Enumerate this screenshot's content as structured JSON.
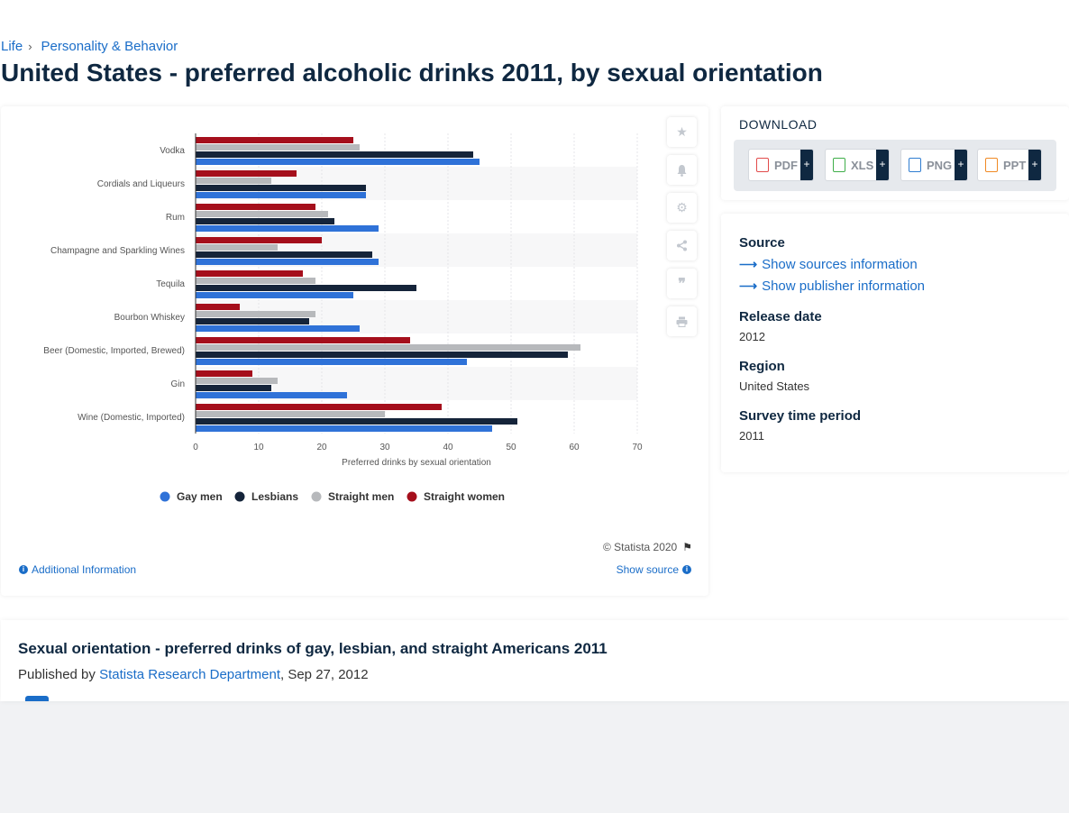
{
  "breadcrumb": {
    "items": [
      "Life",
      "Personality & Behavior"
    ],
    "separator": "›"
  },
  "page_title": "United States - preferred alcoholic drinks 2011, by sexual orientation",
  "toolbar": {
    "icons": [
      "star-icon",
      "bell-icon",
      "gear-icon",
      "share-icon",
      "quote-icon",
      "print-icon"
    ]
  },
  "chart_footer": {
    "copyright": "© Statista 2020",
    "additional_info": "Additional Information",
    "show_source": "Show source"
  },
  "download": {
    "title": "DOWNLOAD",
    "buttons": [
      {
        "label": "PDF",
        "color": "#e24b4b"
      },
      {
        "label": "XLS",
        "color": "#3fae49"
      },
      {
        "label": "PNG",
        "color": "#2f7dd1"
      },
      {
        "label": "PPT",
        "color": "#f08a24"
      }
    ],
    "plus": "+"
  },
  "meta": {
    "source_label": "Source",
    "show_sources": "Show sources information",
    "show_publisher": "Show publisher information",
    "release_label": "Release date",
    "release_value": "2012",
    "region_label": "Region",
    "region_value": "United States",
    "survey_label": "Survey time period",
    "survey_value": "2011"
  },
  "description": {
    "title": "Sexual orientation - preferred drinks of gay, lesbian, and straight Americans 2011",
    "published_prefix": "Published by",
    "publisher": "Statista Research Department",
    "date": ", Sep 27, 2012"
  },
  "chart_data": {
    "type": "bar",
    "orientation": "horizontal",
    "categories": [
      "Vodka",
      "Cordials and Liqueurs",
      "Rum",
      "Champagne and Sparkling Wines",
      "Tequila",
      "Bourbon Whiskey",
      "Beer (Domestic, Imported, Brewed)",
      "Gin",
      "Wine (Domestic, Imported)"
    ],
    "series": [
      {
        "name": "Straight women",
        "color": "#a50f1c",
        "values": [
          25,
          16,
          19,
          20,
          17,
          7,
          34,
          9,
          39
        ]
      },
      {
        "name": "Straight men",
        "color": "#b7b9bc",
        "values": [
          26,
          12,
          21,
          13,
          19,
          19,
          61,
          13,
          30
        ]
      },
      {
        "name": "Lesbians",
        "color": "#15243a",
        "values": [
          44,
          27,
          22,
          28,
          35,
          18,
          59,
          12,
          51
        ]
      },
      {
        "name": "Gay men",
        "color": "#2f72d8",
        "values": [
          45,
          27,
          29,
          29,
          25,
          26,
          43,
          24,
          47
        ]
      }
    ],
    "legend_order": [
      "Gay men",
      "Lesbians",
      "Straight men",
      "Straight women"
    ],
    "xlabel": "Preferred drinks by sexual orientation",
    "xticks": [
      0,
      10,
      20,
      30,
      40,
      50,
      60,
      70
    ],
    "xlim": [
      0,
      70
    ],
    "grid": true,
    "legend_position": "bottom"
  }
}
